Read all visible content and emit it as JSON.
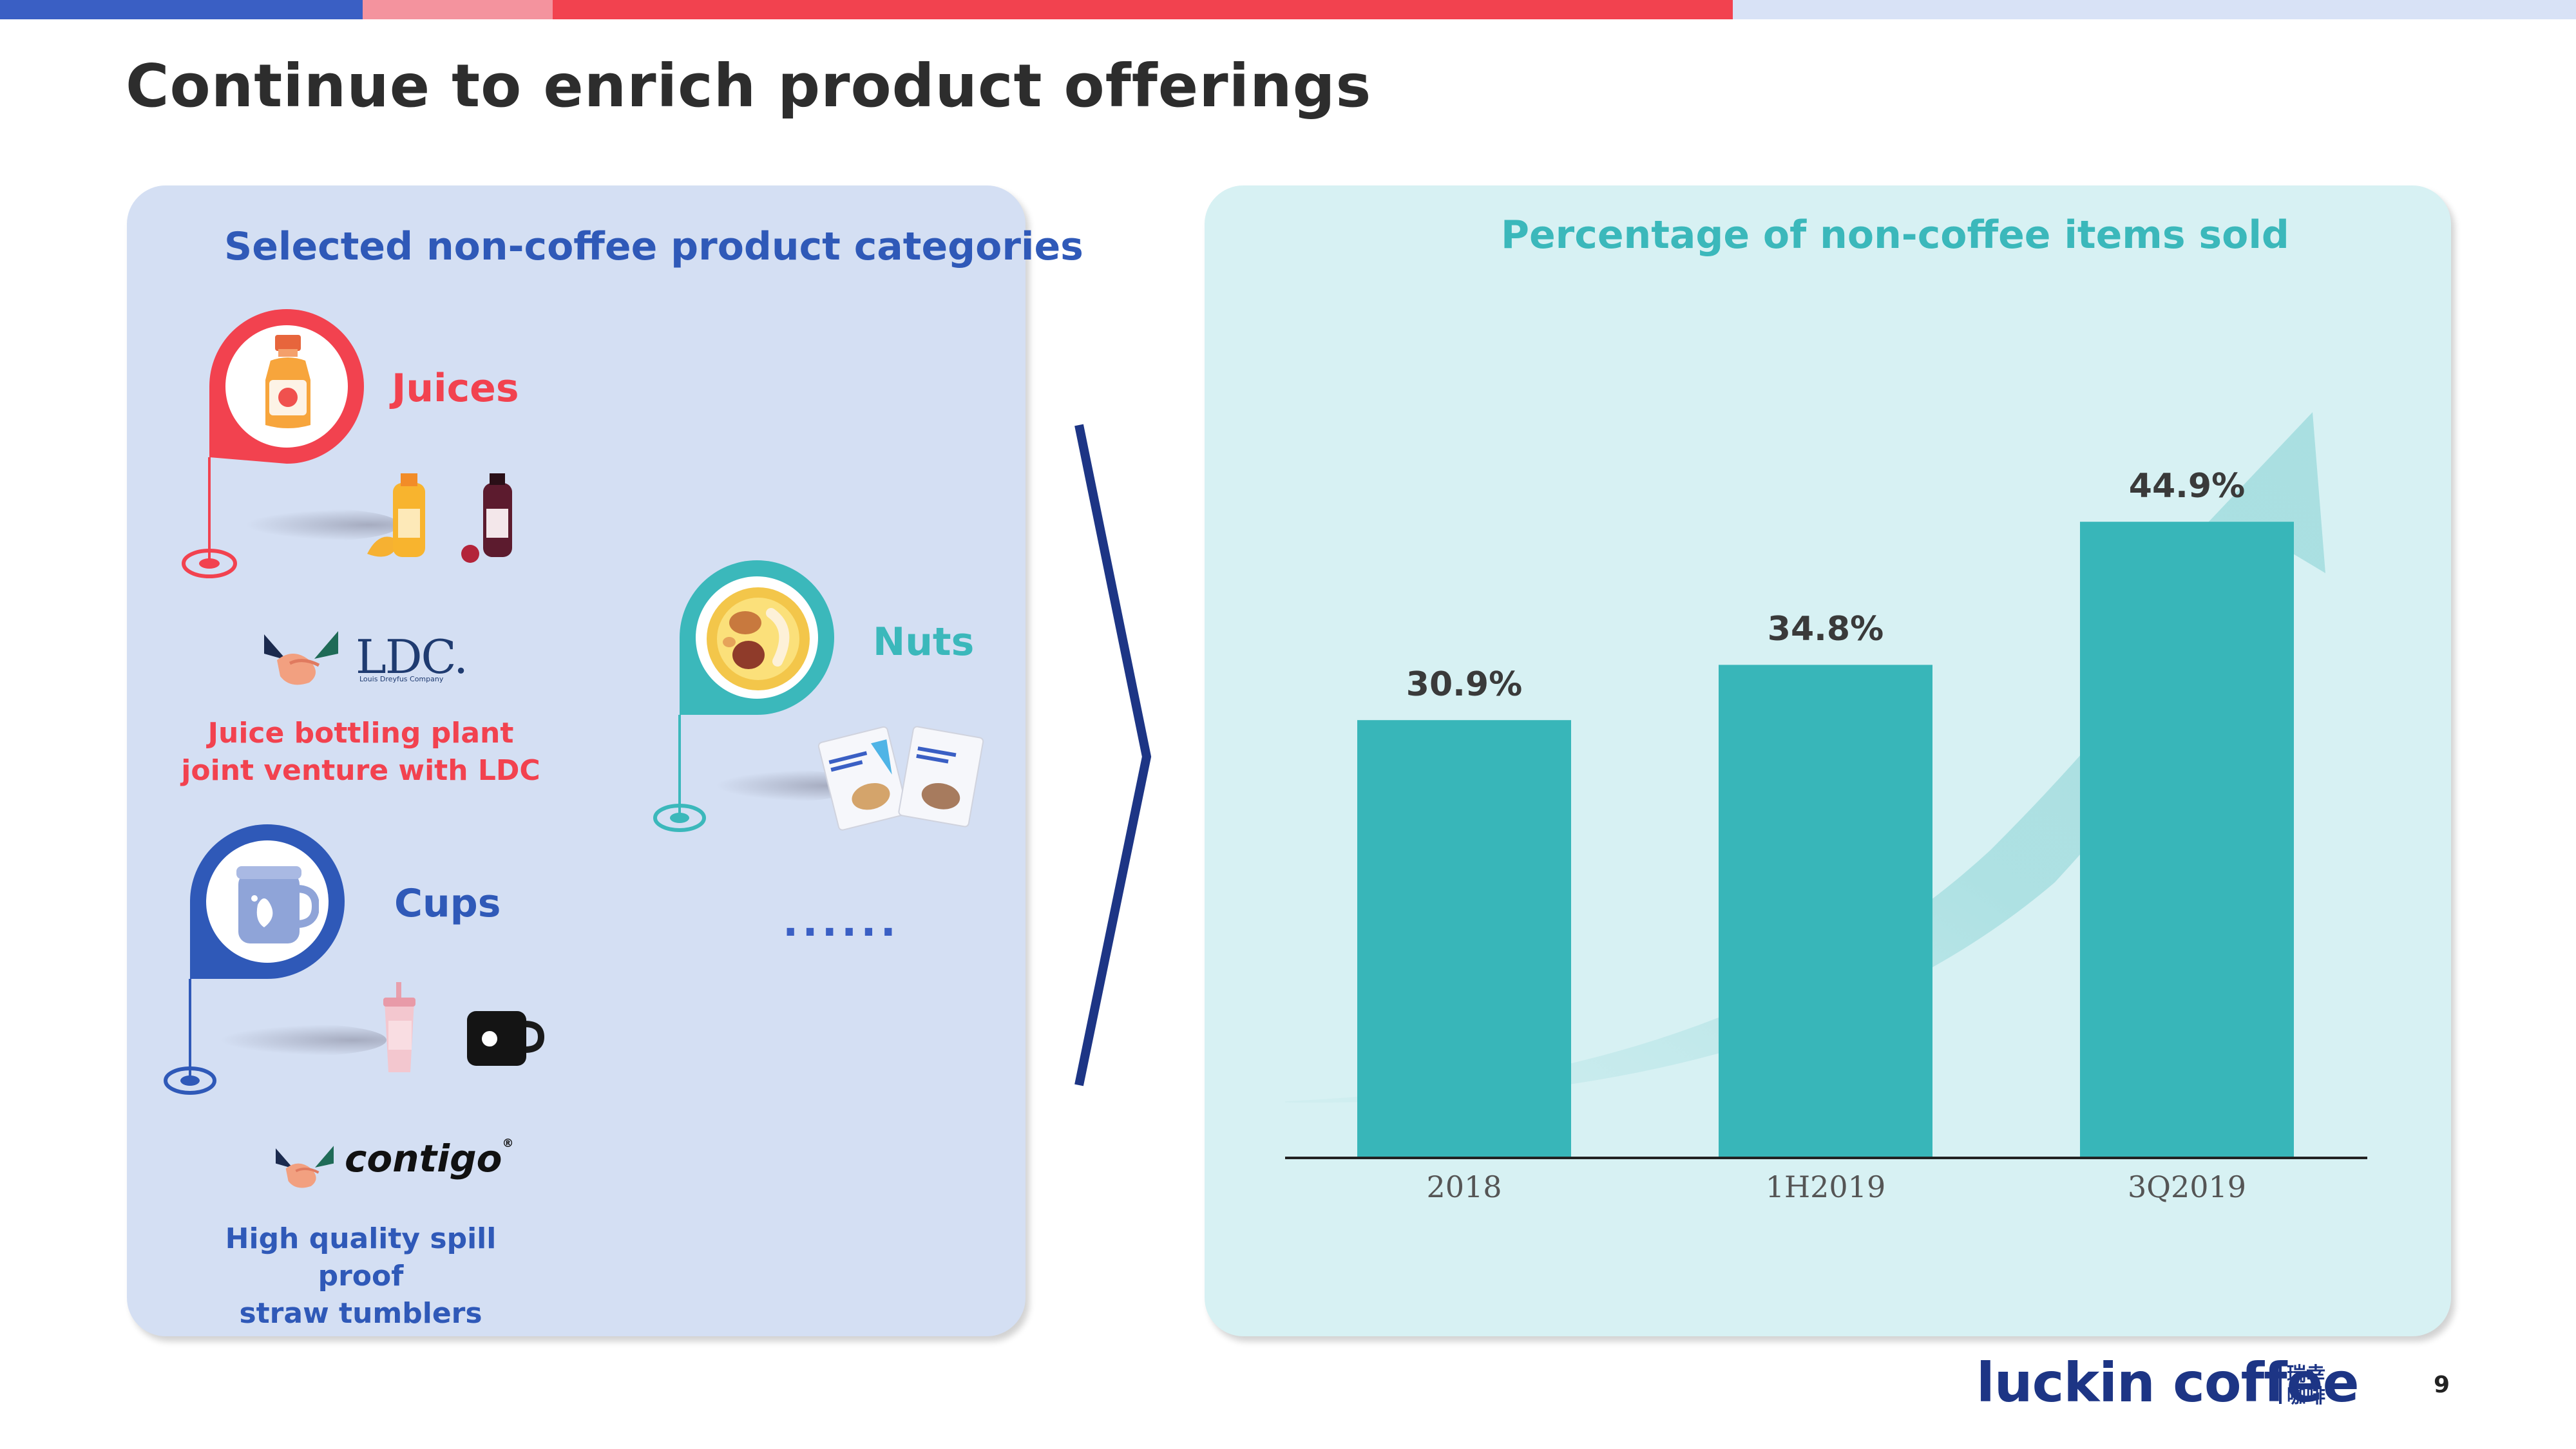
{
  "slide": {
    "title": "Continue to enrich product offerings",
    "page_number": "9",
    "colors": {
      "blue": "#3a5fc4",
      "pink": "#f4939e",
      "red": "#f2424f",
      "light_blue": "#d8e2f6",
      "teal": "#3bb8bb",
      "navy": "#1d3585"
    }
  },
  "left": {
    "heading": "Selected non-coffee product categories",
    "categories": [
      {
        "label": "Juices",
        "icon": "juice-bottle-icon"
      },
      {
        "label": "Nuts",
        "icon": "nuts-bowl-icon"
      },
      {
        "label": "Cups",
        "icon": "mug-icon"
      }
    ],
    "ellipsis": "......",
    "partners": [
      {
        "logo": "LDC.",
        "logo_sub": "Louis Dreyfus Company",
        "caption_line1": "Juice bottling plant",
        "caption_line2": "joint venture with LDC"
      },
      {
        "logo": "contigo",
        "logo_mark": "®",
        "caption_line1": "High quality spill proof",
        "caption_line2": "straw tumblers"
      }
    ]
  },
  "chart_data": {
    "type": "bar",
    "title": "Percentage of non-coffee items sold",
    "categories": [
      "2018",
      "1H2019",
      "3Q2019"
    ],
    "values": [
      30.9,
      34.8,
      44.9
    ],
    "value_labels": [
      "30.9%",
      "34.8%",
      "44.9%"
    ],
    "unit": "%",
    "ylim": [
      0,
      48
    ],
    "xlabel": "",
    "ylabel": "",
    "grid": false,
    "color": "#38b6b9"
  },
  "footer": {
    "brand": "luckin coffee",
    "brand_cn_line1": "瑞幸",
    "brand_cn_line2": "咖啡"
  }
}
